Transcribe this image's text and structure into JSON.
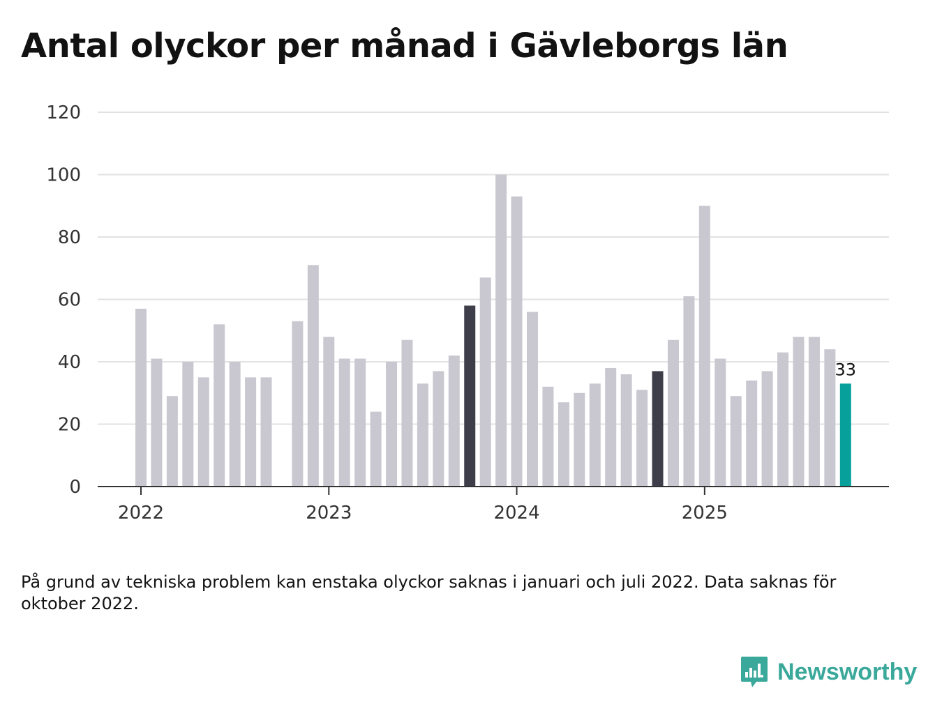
{
  "colors": {
    "bar": "#c9c8d0",
    "highlight": "#3e3e4a",
    "latest": "#08a09a",
    "grid": "#e2e2e2",
    "axis": "#333333",
    "brand": "#3aa89a"
  },
  "chart_data": {
    "type": "bar",
    "title": "Antal olyckor per månad i Gävleborgs län",
    "xlabel": "",
    "ylabel": "",
    "ylim": [
      0,
      120
    ],
    "yticks": [
      0,
      20,
      40,
      60,
      80,
      100,
      120
    ],
    "grid": true,
    "categories": [
      "2022-01",
      "2022-02",
      "2022-03",
      "2022-04",
      "2022-05",
      "2022-06",
      "2022-07",
      "2022-08",
      "2022-09",
      "2022-10",
      "2022-11",
      "2022-12",
      "2023-01",
      "2023-02",
      "2023-03",
      "2023-04",
      "2023-05",
      "2023-06",
      "2023-07",
      "2023-08",
      "2023-09",
      "2023-10",
      "2023-11",
      "2023-12",
      "2024-01",
      "2024-02",
      "2024-03",
      "2024-04",
      "2024-05",
      "2024-06",
      "2024-07",
      "2024-08",
      "2024-09",
      "2024-10",
      "2024-11",
      "2024-12",
      "2025-01",
      "2025-02",
      "2025-03",
      "2025-04",
      "2025-05",
      "2025-06",
      "2025-07",
      "2025-08",
      "2025-09",
      "2025-10"
    ],
    "values": [
      57,
      41,
      29,
      40,
      35,
      52,
      40,
      35,
      35,
      null,
      53,
      71,
      48,
      41,
      41,
      24,
      40,
      47,
      33,
      37,
      42,
      58,
      67,
      100,
      93,
      56,
      32,
      27,
      30,
      33,
      38,
      36,
      31,
      37,
      47,
      61,
      90,
      41,
      29,
      34,
      37,
      43,
      48,
      48,
      44,
      33
    ],
    "highlighted": [
      "2023-10",
      "2024-10"
    ],
    "latest": "2025-10",
    "latest_label": "33",
    "x_tick_labels": [
      {
        "label": "2022",
        "category": "2022-01"
      },
      {
        "label": "2023",
        "category": "2023-01"
      },
      {
        "label": "2024",
        "category": "2024-01"
      },
      {
        "label": "2025",
        "category": "2025-01"
      }
    ]
  },
  "footnote": "På grund av tekniska problem kan enstaka olyckor saknas i januari och juli 2022. Data saknas för oktober 2022.",
  "brand": {
    "name": "Newsworthy",
    "icon": "newsworthy-logo-icon"
  }
}
